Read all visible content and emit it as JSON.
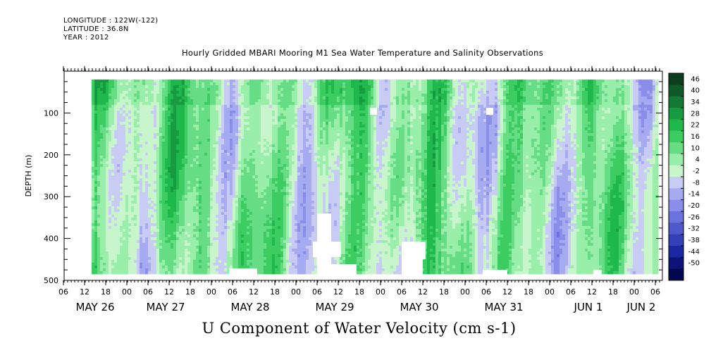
{
  "header": {
    "longitude": "LONGITUDE : 122W(-122)",
    "latitude": "LATITUDE : 36.8N",
    "year": "YEAR : 2012"
  },
  "chart_data": {
    "type": "heatmap",
    "title": "Hourly Gridded MBARI Mooring M1 Sea Water Temperature and Salinity Observations",
    "variable_title": "U Component of Water Velocity (cm s-1)",
    "ylabel": "DEPTH (m)",
    "ylim": [
      500,
      0
    ],
    "y_ticks": [
      100,
      200,
      300,
      400,
      500
    ],
    "x_hour_ticks": [
      "06",
      "12",
      "18",
      "00",
      "06",
      "12",
      "18",
      "00",
      "06",
      "12",
      "18",
      "00",
      "06",
      "12",
      "18",
      "00",
      "06",
      "12",
      "18",
      "00",
      "06",
      "12",
      "18",
      "00",
      "06",
      "12",
      "18",
      "00",
      "06"
    ],
    "date_labels": [
      "MAY 26",
      "MAY 27",
      "MAY 28",
      "MAY 29",
      "MAY 30",
      "MAY 31",
      "JUN  1",
      "JUN  2"
    ],
    "colorbar": {
      "labels": [
        "46",
        "40",
        "34",
        "28",
        "22",
        "16",
        "10",
        "4",
        "-2",
        "-8",
        "-14",
        "-20",
        "-26",
        "-32",
        "-38",
        "-44",
        "-50"
      ],
      "colors": [
        "#0c3d1c",
        "#0f5a28",
        "#127a34",
        "#179a40",
        "#1fb84c",
        "#3ccc62",
        "#66dd85",
        "#99eeaa",
        "#c8f5cc",
        "#c8ccf5",
        "#a6aaf0",
        "#8a8ee8",
        "#6c72dc",
        "#5058cc",
        "#3440b8",
        "#1c28a0",
        "#0c1478",
        "#040850"
      ]
    },
    "data_start": "2012-05-26 13:00",
    "data_end": "2012-06-02 06:00",
    "depth_range_m": [
      20,
      480
    ]
  }
}
